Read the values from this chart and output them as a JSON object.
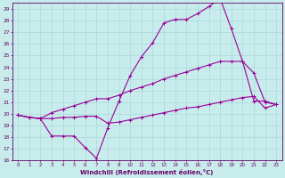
{
  "xlabel": "Windchill (Refroidissement éolien,°C)",
  "bg_color": "#c8ecec",
  "grid_color": "#aad8d8",
  "line_color": "#990099",
  "xlim": [
    -0.5,
    23.5
  ],
  "ylim": [
    16,
    29.5
  ],
  "xticks": [
    0,
    1,
    2,
    3,
    4,
    5,
    6,
    7,
    8,
    9,
    10,
    11,
    12,
    13,
    14,
    15,
    16,
    17,
    18,
    19,
    20,
    21,
    22,
    23
  ],
  "yticks": [
    16,
    17,
    18,
    19,
    20,
    21,
    22,
    23,
    24,
    25,
    26,
    27,
    28,
    29
  ],
  "line1_x": [
    0,
    1,
    2,
    3,
    4,
    5,
    6,
    7,
    8,
    9,
    10,
    11,
    12,
    13,
    14,
    15,
    16,
    17,
    18,
    19,
    20,
    21,
    22,
    23
  ],
  "line1_y": [
    19.9,
    19.7,
    19.6,
    18.1,
    18.1,
    18.1,
    17.1,
    16.2,
    18.8,
    21.1,
    23.3,
    24.9,
    26.1,
    27.8,
    28.1,
    28.1,
    28.6,
    29.2,
    29.9,
    27.3,
    24.5,
    21.1,
    21.1,
    20.8
  ],
  "line2_x": [
    0,
    1,
    2,
    3,
    4,
    5,
    6,
    7,
    8,
    9,
    10,
    11,
    12,
    13,
    14,
    15,
    16,
    17,
    18,
    19,
    20,
    21,
    22,
    23
  ],
  "line2_y": [
    19.9,
    19.7,
    19.6,
    20.1,
    20.4,
    20.7,
    21.0,
    21.3,
    21.3,
    21.6,
    22.0,
    22.3,
    22.6,
    23.0,
    23.3,
    23.6,
    23.9,
    24.2,
    24.5,
    24.5,
    24.5,
    23.5,
    21.0,
    20.8
  ],
  "line3_x": [
    0,
    1,
    2,
    3,
    4,
    5,
    6,
    7,
    8,
    9,
    10,
    11,
    12,
    13,
    14,
    15,
    16,
    17,
    18,
    19,
    20,
    21,
    22,
    23
  ],
  "line3_y": [
    19.9,
    19.7,
    19.6,
    19.6,
    19.7,
    19.7,
    19.8,
    19.8,
    19.2,
    19.3,
    19.5,
    19.7,
    19.9,
    20.1,
    20.3,
    20.5,
    20.6,
    20.8,
    21.0,
    21.2,
    21.4,
    21.5,
    20.5,
    20.8
  ]
}
